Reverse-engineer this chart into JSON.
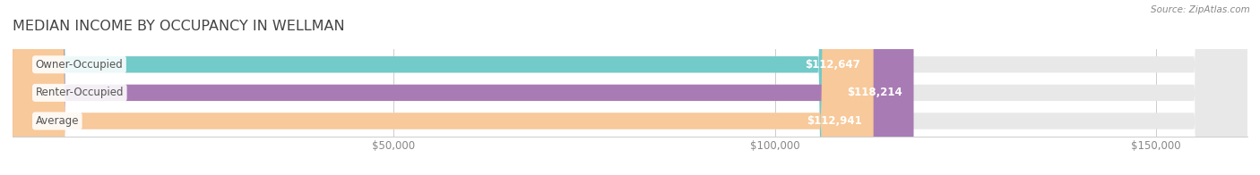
{
  "title": "MEDIAN INCOME BY OCCUPANCY IN WELLMAN",
  "source": "Source: ZipAtlas.com",
  "categories": [
    "Owner-Occupied",
    "Renter-Occupied",
    "Average"
  ],
  "values": [
    112647,
    118214,
    112941
  ],
  "bar_colors": [
    "#72cac9",
    "#a87bb5",
    "#f8c99a"
  ],
  "bar_bg_color": "#e8e8e8",
  "bar_labels": [
    "$112,647",
    "$118,214",
    "$112,941"
  ],
  "x_ticks": [
    0,
    50000,
    100000,
    150000
  ],
  "x_tick_labels": [
    "",
    "$50,000",
    "$100,000",
    "$150,000"
  ],
  "x_max": 162000,
  "x_min": 0,
  "background_color": "#ffffff",
  "title_fontsize": 11.5,
  "label_fontsize": 8.5,
  "tick_fontsize": 8.5,
  "source_fontsize": 7.5,
  "bar_height": 0.58,
  "label_text_color": "#ffffff",
  "category_text_color": "#555555",
  "tick_text_color": "#888888",
  "source_text_color": "#888888",
  "title_text_color": "#444444",
  "rounding_size": 7000
}
